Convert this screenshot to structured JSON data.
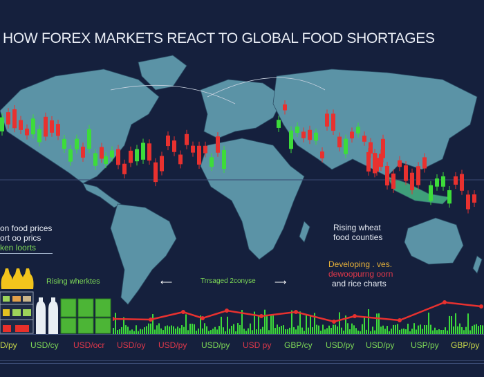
{
  "title": "HOW FOREX MARKETS REACT TO GLOBAL FOOD SHORTAGES",
  "colors": {
    "background": "#15203d",
    "land": "#5b93a6",
    "bull": "#3ddc3a",
    "bear": "#e8312f",
    "text": "#e9edf5",
    "green_text": "#7ed957"
  },
  "left_notes": {
    "line1": "on food prices",
    "line2": "ort oo prics",
    "line3": "ken loorts"
  },
  "rising_markets": "Rising wherktes",
  "arrow_caption": "Trrsaged 2conyse",
  "center_note": {
    "line1": "Rising wheat",
    "line2": "food counties"
  },
  "right_note": {
    "line1": "Developing . ves.",
    "line2": "dewoopurng oorn",
    "line3": "and rice charts"
  },
  "pairs": [
    {
      "label": "D/py",
      "color": "#c9d94a"
    },
    {
      "label": "USD/cy",
      "color": "#7ed957"
    },
    {
      "label": "USD/ocr",
      "color": "#e0384a"
    },
    {
      "label": "USD/oy",
      "color": "#e0384a"
    },
    {
      "label": "USD/py",
      "color": "#e0384a"
    },
    {
      "label": "USD/py",
      "color": "#7ed957"
    },
    {
      "label": "USD py",
      "color": "#e0384a"
    },
    {
      "label": "GBP/cy",
      "color": "#7ed957"
    },
    {
      "label": "USD/py",
      "color": "#7ed957"
    },
    {
      "label": "USD/py",
      "color": "#7ed957"
    },
    {
      "label": "USP/py",
      "color": "#7ed957"
    },
    {
      "label": "GBP/py",
      "color": "#c9d94a"
    }
  ],
  "icons": [
    "left-arrow-icon",
    "right-arrow-icon",
    "oil-bottle-icon",
    "milk-bottle-icon",
    "produce-crate-icon"
  ]
}
